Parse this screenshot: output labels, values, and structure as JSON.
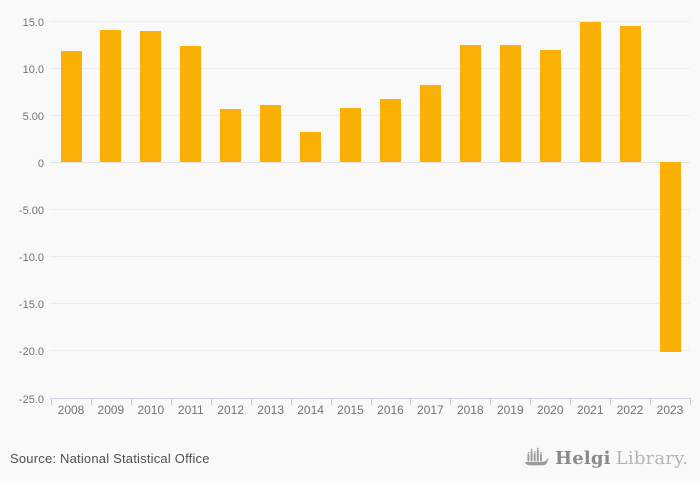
{
  "chart_data": {
    "type": "bar",
    "title": "",
    "xlabel": "",
    "ylabel": "",
    "categories": [
      "2008",
      "2009",
      "2010",
      "2011",
      "2012",
      "2013",
      "2014",
      "2015",
      "2016",
      "2017",
      "2018",
      "2019",
      "2020",
      "2021",
      "2022",
      "2023"
    ],
    "values": [
      11.8,
      14.0,
      13.9,
      12.3,
      5.6,
      6.0,
      3.2,
      5.7,
      6.7,
      8.2,
      12.4,
      12.4,
      11.9,
      14.8,
      14.4,
      -20.2
    ],
    "ylim": [
      -25,
      15
    ],
    "grid": true,
    "legend": false,
    "y_ticks": [
      {
        "label": "15.0",
        "value": 15
      },
      {
        "label": "10.0",
        "value": 10
      },
      {
        "label": "5.00",
        "value": 5
      },
      {
        "label": "0",
        "value": 0
      },
      {
        "label": "-5.00",
        "value": -5
      },
      {
        "label": "-10.0",
        "value": -10
      },
      {
        "label": "-15.0",
        "value": -15
      },
      {
        "label": "-20.0",
        "value": -20
      },
      {
        "label": "-25.0",
        "value": -25
      }
    ],
    "colors": {
      "bar": "#FAB005",
      "background": "#F9F9F9",
      "gridline": "#ECECEC",
      "zero_line": "#E3E3E3",
      "axis_line": "#C9CFE6",
      "tick_label": "#72727A"
    }
  },
  "footer": {
    "source": "Source: National Statistical Office",
    "logo_primary": "Helgi",
    "logo_secondary": "Library."
  }
}
